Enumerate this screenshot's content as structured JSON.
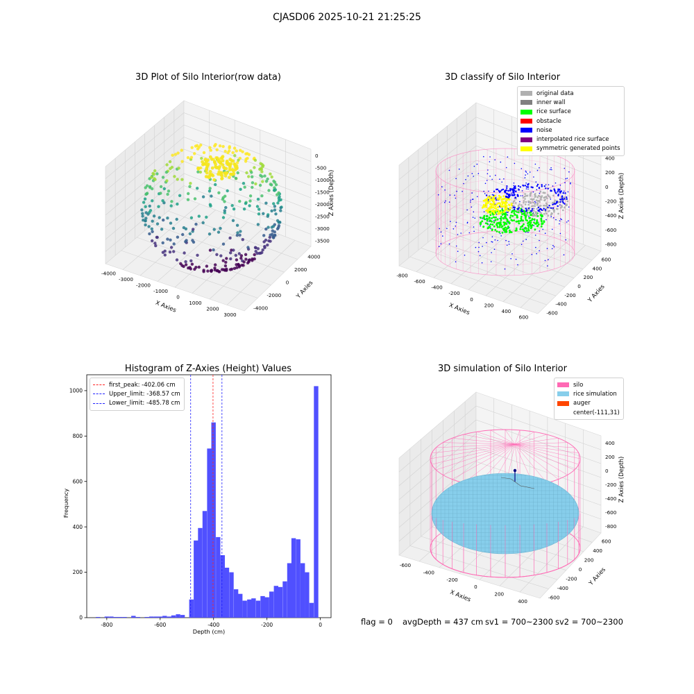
{
  "suptitle": "CJASD06 2025-10-21 21:25:25",
  "colors": {
    "hist_bar": "#5050ff",
    "peak_line": "#ff2020",
    "limit_line": "#2020ff",
    "silo_wire": "#ff69b4",
    "rice": "#87ceeb"
  },
  "panel1": {
    "title": "3D Plot of Silo Interior(row data)",
    "xlabel": "X Axies",
    "ylabel": "Y Axies",
    "zlabel": "Z Axies (Depth)",
    "xticks": [
      "-4000",
      "-3000",
      "-2000",
      "-1000",
      "0",
      "1000",
      "2000",
      "3000"
    ],
    "yticks": [
      "-4000",
      "-2000",
      "0",
      "2000",
      "4000"
    ],
    "zticks": [
      "0",
      "-500",
      "-1000",
      "-1500",
      "-2000",
      "-2500",
      "-3000",
      "-3500"
    ]
  },
  "panel2": {
    "title": "3D classify of Silo Interior",
    "xlabel": "X Axies",
    "ylabel": "Y Axies",
    "zlabel": "Z Axies (Depth)",
    "xticks": [
      "-800",
      "-600",
      "-400",
      "-200",
      "0",
      "200",
      "400",
      "600"
    ],
    "yticks": [
      "-600",
      "-400",
      "-200",
      "0",
      "200",
      "400",
      "600"
    ],
    "zticks": [
      "400",
      "200",
      "0",
      "-200",
      "-400",
      "-600",
      "-800"
    ],
    "legend": [
      {
        "label": "original data",
        "color": "#b0b0b0"
      },
      {
        "label": "inner wall",
        "color": "#808080"
      },
      {
        "label": "rice surface",
        "color": "#00ff00"
      },
      {
        "label": "obstacle",
        "color": "#ff0000"
      },
      {
        "label": "noise",
        "color": "#0000ff"
      },
      {
        "label": "interpolated rice surface",
        "color": "#800080"
      },
      {
        "label": "symmetric generated points",
        "color": "#ffff00"
      }
    ]
  },
  "panel3": {
    "title": "Histogram of Z-Axies (Height) Values",
    "legend": [
      {
        "label": "first_peak: -402.06 cm",
        "color": "#ff2020"
      },
      {
        "label": "Upper_limit: -368.57 cm",
        "color": "#2020ff"
      },
      {
        "label": "Lower_limit: -485.78 cm",
        "color": "#2020ff"
      }
    ]
  },
  "panel4": {
    "title": "3D simulation of Silo Interior",
    "xlabel": "X Axies",
    "ylabel": "Y Axies",
    "zlabel": "Z Axies (Depth)",
    "xticks": [
      "-600",
      "-400",
      "-200",
      "0",
      "200",
      "400"
    ],
    "yticks": [
      "-600",
      "-400",
      "-200",
      "0",
      "200",
      "400",
      "600"
    ],
    "zticks": [
      "400",
      "200",
      "0",
      "-200",
      "-400",
      "-600",
      "-800"
    ],
    "legend": [
      {
        "label": "silo",
        "color": "#ff69b4"
      },
      {
        "label": "rice simulation",
        "color": "#87ceeb"
      },
      {
        "label": "auger",
        "color": "#ff4500"
      },
      {
        "label": "center(-111,31)",
        "color": "transparent"
      }
    ]
  },
  "footer": {
    "flag": "flag = 0",
    "avg": "avgDepth = 437 cm",
    "sv1": "sv1 = 700~2300",
    "sv2": "sv2 = 700~2300"
  },
  "chart_data": [
    {
      "type": "scatter",
      "title": "3D Plot of Silo Interior(row data)",
      "xlabel": "X Axies",
      "ylabel": "Y Axies",
      "zlabel": "Z Axies (Depth)",
      "xlim": [
        -4500,
        3500
      ],
      "ylim": [
        -4500,
        4500
      ],
      "zlim": [
        -4000,
        200
      ],
      "colormap": "viridis"
    },
    {
      "type": "scatter",
      "title": "3D classify of Silo Interior",
      "xlabel": "X Axies",
      "ylabel": "Y Axies",
      "zlabel": "Z Axies (Depth)",
      "xlim": [
        -850,
        650
      ],
      "ylim": [
        -700,
        700
      ],
      "zlim": [
        -900,
        450
      ]
    },
    {
      "type": "bar",
      "title": "Histogram of Z-Axies (Height) Values",
      "xlabel": "Depth (cm)",
      "ylabel": "Frequency",
      "xlim": [
        -875,
        40
      ],
      "ylim": [
        0,
        1070
      ],
      "xticks": [
        -800,
        -600,
        -400,
        -200,
        0
      ],
      "yticks": [
        0,
        200,
        400,
        600,
        800,
        1000
      ],
      "bin_width": 16.6,
      "bins": [
        {
          "x": -833,
          "y": 3
        },
        {
          "x": -800,
          "y": 5
        },
        {
          "x": -783,
          "y": 5
        },
        {
          "x": -766,
          "y": 3
        },
        {
          "x": -750,
          "y": 3
        },
        {
          "x": -733,
          "y": 3
        },
        {
          "x": -700,
          "y": 8
        },
        {
          "x": -683,
          "y": 3
        },
        {
          "x": -650,
          "y": 3
        },
        {
          "x": -633,
          "y": 5
        },
        {
          "x": -616,
          "y": 5
        },
        {
          "x": -600,
          "y": 5
        },
        {
          "x": -583,
          "y": 8
        },
        {
          "x": -566,
          "y": 5
        },
        {
          "x": -550,
          "y": 10
        },
        {
          "x": -533,
          "y": 15
        },
        {
          "x": -516,
          "y": 12
        },
        {
          "x": -483,
          "y": 80
        },
        {
          "x": -466,
          "y": 340
        },
        {
          "x": -450,
          "y": 395
        },
        {
          "x": -433,
          "y": 470
        },
        {
          "x": -416,
          "y": 745
        },
        {
          "x": -400,
          "y": 860
        },
        {
          "x": -383,
          "y": 355
        },
        {
          "x": -366,
          "y": 275
        },
        {
          "x": -350,
          "y": 220
        },
        {
          "x": -333,
          "y": 200
        },
        {
          "x": -316,
          "y": 125
        },
        {
          "x": -300,
          "y": 105
        },
        {
          "x": -283,
          "y": 75
        },
        {
          "x": -266,
          "y": 80
        },
        {
          "x": -250,
          "y": 85
        },
        {
          "x": -233,
          "y": 75
        },
        {
          "x": -216,
          "y": 95
        },
        {
          "x": -200,
          "y": 90
        },
        {
          "x": -183,
          "y": 115
        },
        {
          "x": -166,
          "y": 140
        },
        {
          "x": -150,
          "y": 135
        },
        {
          "x": -133,
          "y": 160
        },
        {
          "x": -116,
          "y": 240
        },
        {
          "x": -100,
          "y": 350
        },
        {
          "x": -83,
          "y": 345
        },
        {
          "x": -66,
          "y": 240
        },
        {
          "x": -50,
          "y": 200
        },
        {
          "x": -33,
          "y": 65
        },
        {
          "x": -16,
          "y": 1020
        }
      ],
      "vlines": [
        {
          "name": "first_peak",
          "x": -402.06
        },
        {
          "name": "Upper_limit",
          "x": -368.57
        },
        {
          "name": "Lower_limit",
          "x": -485.78
        }
      ]
    },
    {
      "type": "scatter",
      "title": "3D simulation of Silo Interior",
      "xlabel": "X Axies",
      "ylabel": "Y Axies",
      "zlabel": "Z Axies (Depth)",
      "xlim": [
        -750,
        550
      ],
      "ylim": [
        -700,
        700
      ],
      "zlim": [
        -900,
        450
      ]
    }
  ]
}
